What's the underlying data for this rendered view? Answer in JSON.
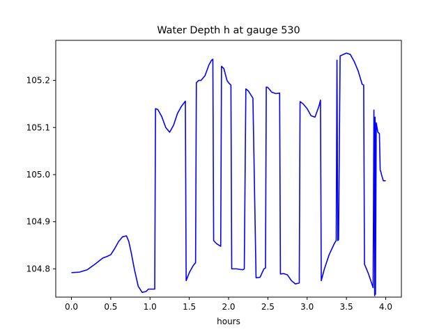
{
  "chart_data": {
    "type": "line",
    "title": "Water Depth h at gauge 530",
    "xlabel": "hours",
    "ylabel": "",
    "xlim": [
      -0.2,
      4.2
    ],
    "ylim": [
      104.74,
      105.285
    ],
    "xticks": [
      0.0,
      0.5,
      1.0,
      1.5,
      2.0,
      2.5,
      3.0,
      3.5,
      4.0
    ],
    "xtick_labels": [
      "0.0",
      "0.5",
      "1.0",
      "1.5",
      "2.0",
      "2.5",
      "3.0",
      "3.5",
      "4.0"
    ],
    "yticks": [
      104.8,
      104.9,
      105.0,
      105.1,
      105.2
    ],
    "ytick_labels": [
      "104.8",
      "104.9",
      "105.0",
      "105.1",
      "105.2"
    ],
    "grid": false,
    "series": [
      {
        "color": "#0000ff",
        "x": [
          0.0,
          0.1,
          0.2,
          0.3,
          0.4,
          0.45,
          0.5,
          0.55,
          0.6,
          0.65,
          0.7,
          0.73,
          0.76,
          0.8,
          0.85,
          0.9,
          0.95,
          0.98,
          1.02,
          1.06,
          1.07,
          1.1,
          1.15,
          1.2,
          1.25,
          1.3,
          1.35,
          1.4,
          1.45,
          1.46,
          1.5,
          1.55,
          1.58,
          1.59,
          1.62,
          1.65,
          1.7,
          1.75,
          1.78,
          1.8,
          1.81,
          1.85,
          1.9,
          1.91,
          1.94,
          1.98,
          2.0,
          2.03,
          2.04,
          2.1,
          2.18,
          2.2,
          2.22,
          2.25,
          2.3,
          2.31,
          2.35,
          2.4,
          2.45,
          2.47,
          2.48,
          2.5,
          2.55,
          2.6,
          2.65,
          2.66,
          2.7,
          2.75,
          2.8,
          2.85,
          2.9,
          2.91,
          2.95,
          3.0,
          3.05,
          3.1,
          3.15,
          3.17,
          3.18,
          3.22,
          3.28,
          3.35,
          3.37,
          3.38,
          3.39,
          3.4,
          3.42,
          3.5,
          3.55,
          3.6,
          3.65,
          3.7,
          3.72,
          3.73,
          3.78,
          3.84,
          3.85,
          3.86,
          3.865,
          3.87,
          3.88,
          3.9,
          3.92,
          3.93,
          3.94,
          3.95,
          3.97,
          4.0
        ],
        "values": [
          104.792,
          104.793,
          104.798,
          104.81,
          104.823,
          104.826,
          104.83,
          104.843,
          104.858,
          104.868,
          104.87,
          104.858,
          104.835,
          104.8,
          104.763,
          104.75,
          104.752,
          104.757,
          104.757,
          104.757,
          105.14,
          105.138,
          105.123,
          105.1,
          105.09,
          105.105,
          105.13,
          105.145,
          105.156,
          104.775,
          104.792,
          104.807,
          104.813,
          105.195,
          105.2,
          105.2,
          105.21,
          105.233,
          105.242,
          105.245,
          104.86,
          104.853,
          104.848,
          105.23,
          105.225,
          105.2,
          105.195,
          105.19,
          104.8,
          104.8,
          104.798,
          104.8,
          105.182,
          105.178,
          105.165,
          105.162,
          104.781,
          104.782,
          104.8,
          104.802,
          105.186,
          105.185,
          105.175,
          105.172,
          105.173,
          104.789,
          104.79,
          104.787,
          104.775,
          104.768,
          104.77,
          105.155,
          105.15,
          105.14,
          105.125,
          105.122,
          105.145,
          105.158,
          104.775,
          104.8,
          104.83,
          104.855,
          104.86,
          105.243,
          104.86,
          104.862,
          105.252,
          105.258,
          105.255,
          105.24,
          105.22,
          105.192,
          105.19,
          104.81,
          104.79,
          104.76,
          105.137,
          104.743,
          105.122,
          104.746,
          105.11,
          105.09,
          105.087,
          105.01,
          105.005,
          104.998,
          104.987,
          104.987
        ]
      }
    ]
  }
}
